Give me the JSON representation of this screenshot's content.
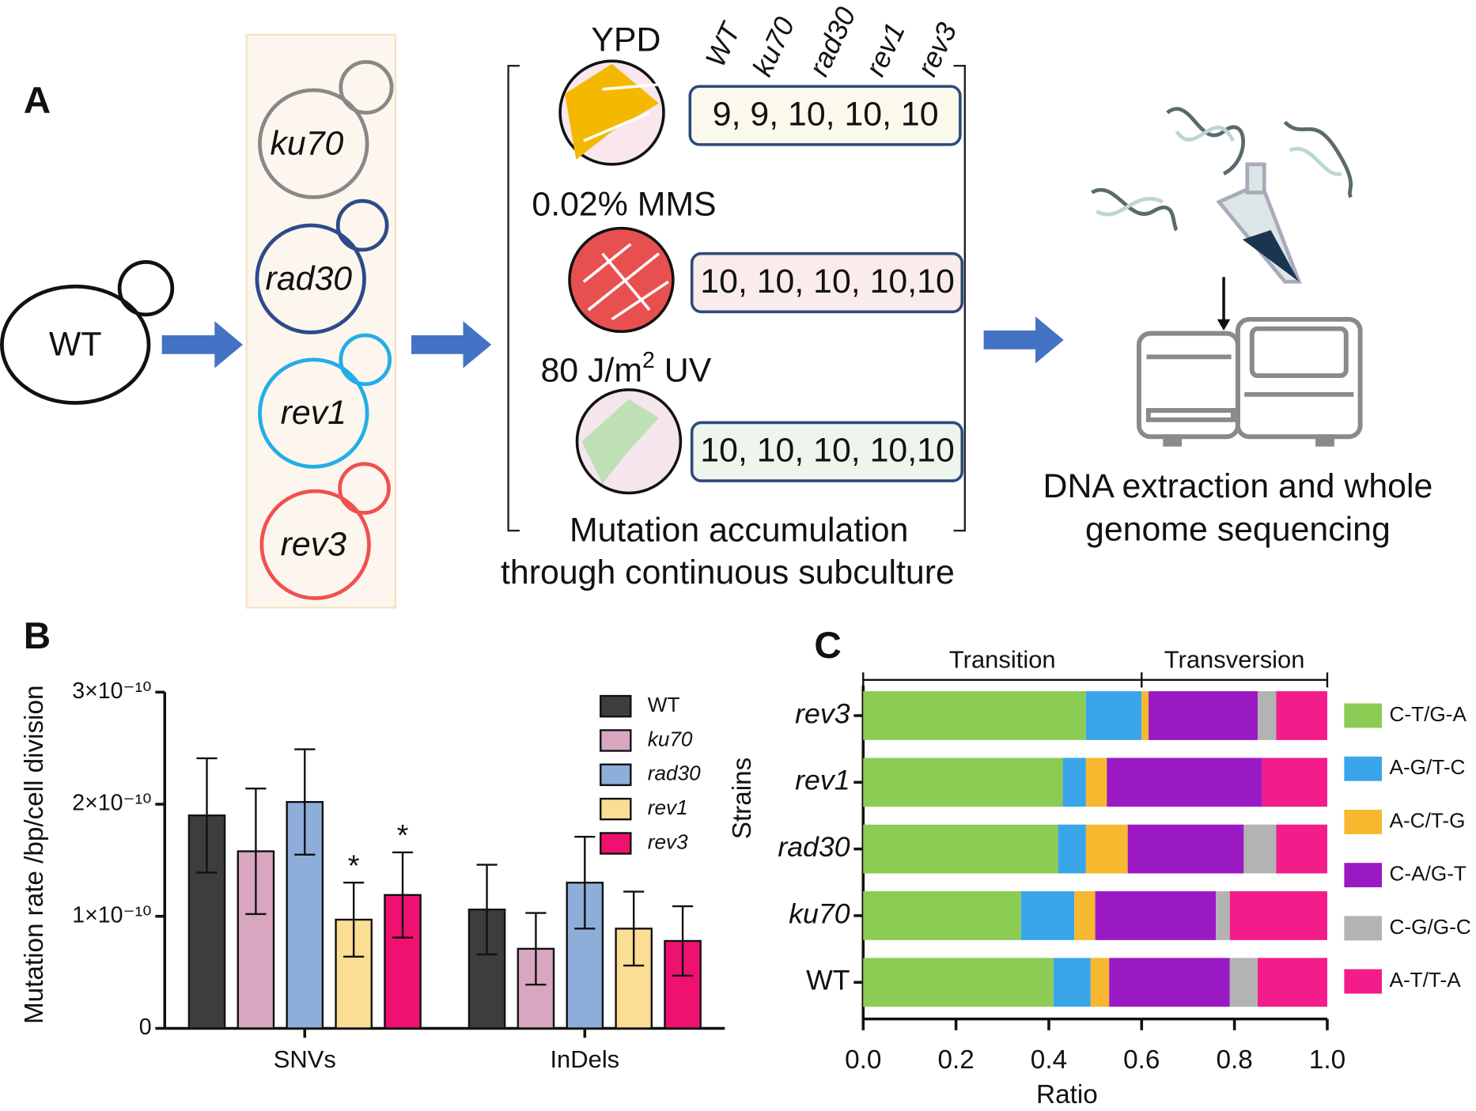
{
  "panel_labels": [
    "A",
    "B",
    "C"
  ],
  "diagram": {
    "parent_strain": "WT",
    "mutant_strains": [
      "ku70",
      "rad30",
      "rev1",
      "rev3"
    ],
    "column_headers": [
      "WT",
      "ku70",
      "rad30",
      "rev1",
      "rev3"
    ],
    "conditions": [
      {
        "label": [
          "YPD"
        ],
        "counts": "9, 9, 10, 10, 10"
      },
      {
        "label": [
          "0.02% MMS"
        ],
        "counts": "10, 10, 10, 10,10"
      },
      {
        "label": [
          "80 J/m",
          "2",
          " UV"
        ],
        "counts": "10, 10, 10, 10,10"
      }
    ],
    "caption": [
      "Mutation accumulation",
      "through continuous subculture"
    ],
    "sequencing_caption": [
      "DNA extraction and whole",
      "genome sequencing"
    ]
  },
  "chart_data": [
    {
      "type": "bar",
      "y_label": "Mutation rate /bp/cell division",
      "categories": [
        "SNVs",
        "InDels"
      ],
      "series": [
        {
          "name": "WT",
          "name_style": "normal",
          "color": "#3d3d3d",
          "values": [
            1.9e-10,
            1.06e-10
          ],
          "errors": [
            5.1e-11,
            4e-11
          ]
        },
        {
          "name": "ku70",
          "name_style": "italic",
          "color": "#d9a6c0",
          "values": [
            1.58e-10,
            7.1e-11
          ],
          "errors": [
            5.6e-11,
            3.2e-11
          ]
        },
        {
          "name": "rad30",
          "name_style": "italic",
          "color": "#8fadd9",
          "values": [
            2.02e-10,
            1.3e-10
          ],
          "errors": [
            4.7e-11,
            4.1e-11
          ]
        },
        {
          "name": "rev1",
          "name_style": "italic",
          "color": "#fbdd94",
          "values": [
            9.7e-11,
            8.9e-11
          ],
          "errors": [
            3.3e-11,
            3.3e-11
          ],
          "annotations": [
            "*",
            null
          ]
        },
        {
          "name": "rev3",
          "name_style": "italic",
          "color": "#ee1170",
          "values": [
            1.19e-10,
            7.8e-11
          ],
          "errors": [
            3.8e-11,
            3.1e-11
          ],
          "annotations": [
            "*",
            null
          ]
        }
      ],
      "ylim": [
        0,
        3e-10
      ],
      "yticks": [
        0,
        {
          "value": 1e-10,
          "label": "1×10⁻¹⁰"
        },
        {
          "value": 2e-10,
          "label": "2×10⁻¹⁰"
        },
        {
          "value": 3e-10,
          "label": "3×10⁻¹⁰"
        }
      ],
      "legend": "top-right"
    },
    {
      "type": "stacked_barh",
      "x_label": "Ratio",
      "y_label": "Strains",
      "categories": [
        "WT",
        "ku70",
        "rad30",
        "rev1",
        "rev3"
      ],
      "category_style": [
        "normal",
        "italic",
        "italic",
        "italic",
        "italic"
      ],
      "series": [
        {
          "name": "C-T/G-A",
          "color": "#8ccc55",
          "values": [
            0.41,
            0.34,
            0.42,
            0.43,
            0.48
          ]
        },
        {
          "name": "A-G/T-C",
          "color": "#3aa5e8",
          "values": [
            0.08,
            0.115,
            0.06,
            0.05,
            0.12
          ]
        },
        {
          "name": "A-C/T-G",
          "color": "#f5b82e",
          "values": [
            0.04,
            0.045,
            0.09,
            0.045,
            0.015
          ]
        },
        {
          "name": "C-A/G-T",
          "color": "#9b19c2",
          "values": [
            0.26,
            0.26,
            0.25,
            0.335,
            0.235
          ]
        },
        {
          "name": "C-G/G-C",
          "color": "#b3b3b3",
          "values": [
            0.06,
            0.03,
            0.07,
            0,
            0.04
          ]
        },
        {
          "name": "A-T/T-A",
          "color": "#f21c8a",
          "values": [
            0.15,
            0.21,
            0.11,
            0.14,
            0.11
          ]
        }
      ],
      "brackets": [
        {
          "label": "Transition",
          "range": [
            0,
            0.6
          ]
        },
        {
          "label": "Transversion",
          "range": [
            0.6,
            1
          ]
        }
      ],
      "xlim": [
        0,
        1
      ],
      "xticks": [
        {
          "value": 0,
          "label": "0.0"
        },
        0.2,
        0.4,
        0.6,
        0.8,
        {
          "value": 1,
          "label": "1.0"
        }
      ],
      "legend": "right"
    }
  ]
}
